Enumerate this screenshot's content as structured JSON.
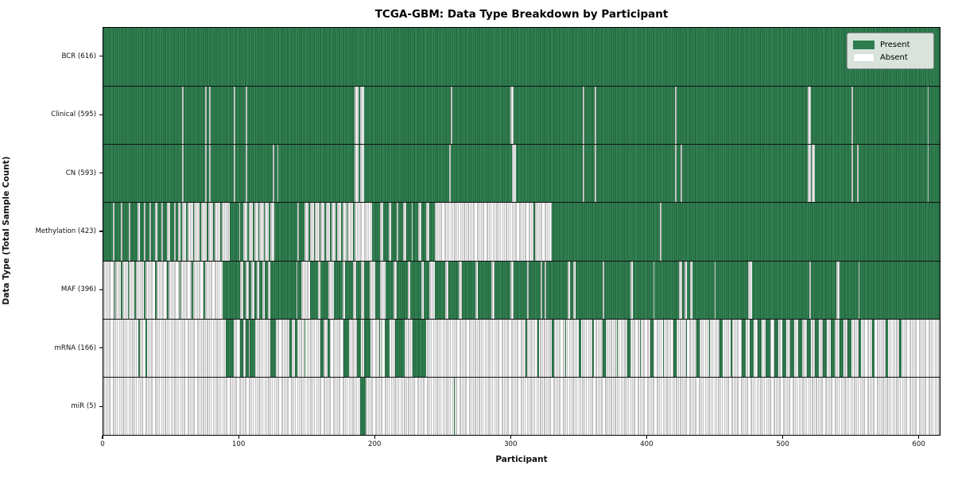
{
  "title": "TCGA-GBM: Data Type Breakdown by Participant",
  "xlabel": "Participant",
  "ylabel": "Data Type (Total Sample Count)",
  "legend": {
    "present_label": "Present",
    "absent_label": "Absent"
  },
  "colors": {
    "present": "#2e7d4e",
    "present_edge": "#1d5a36",
    "absent": "#ffffff",
    "absent_edge": "#8d8d8d",
    "legend_bg": "#e8ece8",
    "row_divider": "#101010"
  },
  "chart_data": {
    "type": "heatmap",
    "title": "TCGA-GBM: Data Type Breakdown by Participant",
    "xlabel": "Participant",
    "ylabel": "Data Type (Total Sample Count)",
    "x_range": [
      0,
      616
    ],
    "x_ticks": [
      0,
      100,
      200,
      300,
      400,
      500,
      600
    ],
    "legend_entries": [
      "Present",
      "Absent"
    ],
    "legend_position": "upper right",
    "note": "Each row is a presence/absence barcode across 616 participants. base=1 means present by default with listed absent runs; base=0 means absent by default with listed present runs. Runs are [start,end) participant indices estimated from the image.",
    "rows": [
      {
        "label": "BCR (616)",
        "name": "BCR",
        "present_count": 616,
        "base": 1,
        "runs": []
      },
      {
        "label": "Clinical (595)",
        "name": "Clinical",
        "present_count": 595,
        "base": 1,
        "runs": [
          [
            58,
            59
          ],
          [
            75,
            76
          ],
          [
            78,
            79
          ],
          [
            96,
            97
          ],
          [
            105,
            106
          ],
          [
            185,
            188
          ],
          [
            189,
            192
          ],
          [
            256,
            257
          ],
          [
            300,
            302
          ],
          [
            353,
            354
          ],
          [
            362,
            363
          ],
          [
            421,
            422
          ],
          [
            519,
            521
          ],
          [
            551,
            552
          ],
          [
            607,
            608
          ]
        ]
      },
      {
        "label": "CN (593)",
        "name": "CN",
        "present_count": 593,
        "base": 1,
        "runs": [
          [
            58,
            59
          ],
          [
            75,
            76
          ],
          [
            78,
            79
          ],
          [
            96,
            97
          ],
          [
            105,
            106
          ],
          [
            125,
            126
          ],
          [
            128,
            129
          ],
          [
            185,
            188
          ],
          [
            189,
            192
          ],
          [
            255,
            256
          ],
          [
            301,
            304
          ],
          [
            353,
            354
          ],
          [
            362,
            363
          ],
          [
            421,
            422
          ],
          [
            425,
            426
          ],
          [
            519,
            521
          ],
          [
            522,
            524
          ],
          [
            551,
            552
          ],
          [
            555,
            556
          ],
          [
            607,
            608
          ]
        ]
      },
      {
        "label": "Methylation (423)",
        "name": "Methylation",
        "present_count": 423,
        "base": 1,
        "runs": [
          [
            7,
            8
          ],
          [
            13,
            14
          ],
          [
            19,
            20
          ],
          [
            25,
            27
          ],
          [
            30,
            31
          ],
          [
            34,
            35
          ],
          [
            38,
            40
          ],
          [
            43,
            44
          ],
          [
            47,
            49
          ],
          [
            52,
            53
          ],
          [
            55,
            57
          ],
          [
            58,
            61
          ],
          [
            62,
            66
          ],
          [
            67,
            71
          ],
          [
            72,
            76
          ],
          [
            77,
            81
          ],
          [
            82,
            86
          ],
          [
            87,
            93
          ],
          [
            100,
            101
          ],
          [
            103,
            106
          ],
          [
            107,
            110
          ],
          [
            111,
            114
          ],
          [
            115,
            118
          ],
          [
            119,
            122
          ],
          [
            123,
            126
          ],
          [
            143,
            144
          ],
          [
            148,
            151
          ],
          [
            152,
            155
          ],
          [
            156,
            159
          ],
          [
            160,
            163
          ],
          [
            164,
            167
          ],
          [
            168,
            171
          ],
          [
            172,
            175
          ],
          [
            176,
            179
          ],
          [
            180,
            184
          ],
          [
            185,
            198
          ],
          [
            204,
            206
          ],
          [
            210,
            212
          ],
          [
            216,
            217
          ],
          [
            221,
            223
          ],
          [
            227,
            228
          ],
          [
            232,
            234
          ],
          [
            238,
            240
          ],
          [
            244,
            317
          ],
          [
            318,
            330
          ],
          [
            410,
            411
          ]
        ]
      },
      {
        "label": "MAF (396)",
        "name": "MAF",
        "present_count": 396,
        "base": 1,
        "runs": [
          [
            0,
            8
          ],
          [
            9,
            13
          ],
          [
            14,
            18
          ],
          [
            19,
            23
          ],
          [
            24,
            30
          ],
          [
            31,
            38
          ],
          [
            39,
            47
          ],
          [
            48,
            56
          ],
          [
            57,
            65
          ],
          [
            66,
            74
          ],
          [
            75,
            88
          ],
          [
            101,
            103
          ],
          [
            105,
            107
          ],
          [
            109,
            111
          ],
          [
            113,
            115
          ],
          [
            117,
            119
          ],
          [
            121,
            123
          ],
          [
            142,
            143
          ],
          [
            146,
            152
          ],
          [
            158,
            160
          ],
          [
            166,
            170
          ],
          [
            176,
            178
          ],
          [
            184,
            186
          ],
          [
            190,
            192
          ],
          [
            196,
            200
          ],
          [
            204,
            208
          ],
          [
            214,
            216
          ],
          [
            224,
            226
          ],
          [
            234,
            236
          ],
          [
            240,
            244
          ],
          [
            252,
            254
          ],
          [
            262,
            264
          ],
          [
            274,
            276
          ],
          [
            286,
            288
          ],
          [
            300,
            302
          ],
          [
            312,
            313
          ],
          [
            322,
            323
          ],
          [
            325,
            326
          ],
          [
            342,
            344
          ],
          [
            346,
            348
          ],
          [
            368,
            369
          ],
          [
            388,
            390
          ],
          [
            405,
            406
          ],
          [
            424,
            426
          ],
          [
            428,
            430
          ],
          [
            432,
            434
          ],
          [
            450,
            451
          ],
          [
            475,
            478
          ],
          [
            520,
            521
          ],
          [
            540,
            542
          ],
          [
            556,
            557
          ]
        ]
      },
      {
        "label": "mRNA (166)",
        "name": "mRNA",
        "present_count": 166,
        "base": 0,
        "runs": [
          [
            26,
            27
          ],
          [
            31,
            32
          ],
          [
            90,
            96
          ],
          [
            101,
            103
          ],
          [
            105,
            107
          ],
          [
            108,
            112
          ],
          [
            123,
            127
          ],
          [
            137,
            139
          ],
          [
            141,
            143
          ],
          [
            148,
            149
          ],
          [
            160,
            162
          ],
          [
            165,
            167
          ],
          [
            177,
            181
          ],
          [
            187,
            190
          ],
          [
            192,
            197
          ],
          [
            203,
            204
          ],
          [
            207,
            211
          ],
          [
            215,
            222
          ],
          [
            228,
            238
          ],
          [
            311,
            312
          ],
          [
            320,
            321
          ],
          [
            330,
            332
          ],
          [
            340,
            341
          ],
          [
            350,
            352
          ],
          [
            360,
            361
          ],
          [
            368,
            370
          ],
          [
            378,
            379
          ],
          [
            386,
            388
          ],
          [
            395,
            396
          ],
          [
            403,
            405
          ],
          [
            412,
            413
          ],
          [
            420,
            422
          ],
          [
            429,
            430
          ],
          [
            437,
            439
          ],
          [
            446,
            447
          ],
          [
            454,
            456
          ],
          [
            462,
            463
          ],
          [
            470,
            473
          ],
          [
            476,
            479
          ],
          [
            482,
            485
          ],
          [
            488,
            491
          ],
          [
            494,
            497
          ],
          [
            500,
            503
          ],
          [
            506,
            509
          ],
          [
            512,
            515
          ],
          [
            518,
            521
          ],
          [
            524,
            527
          ],
          [
            530,
            533
          ],
          [
            536,
            539
          ],
          [
            542,
            545
          ],
          [
            548,
            551
          ],
          [
            556,
            558
          ],
          [
            566,
            568
          ],
          [
            576,
            578
          ],
          [
            586,
            588
          ]
        ]
      },
      {
        "label": "miR (5)",
        "name": "miR",
        "present_count": 5,
        "base": 0,
        "runs": [
          [
            189,
            193
          ],
          [
            258,
            259
          ]
        ]
      }
    ]
  }
}
